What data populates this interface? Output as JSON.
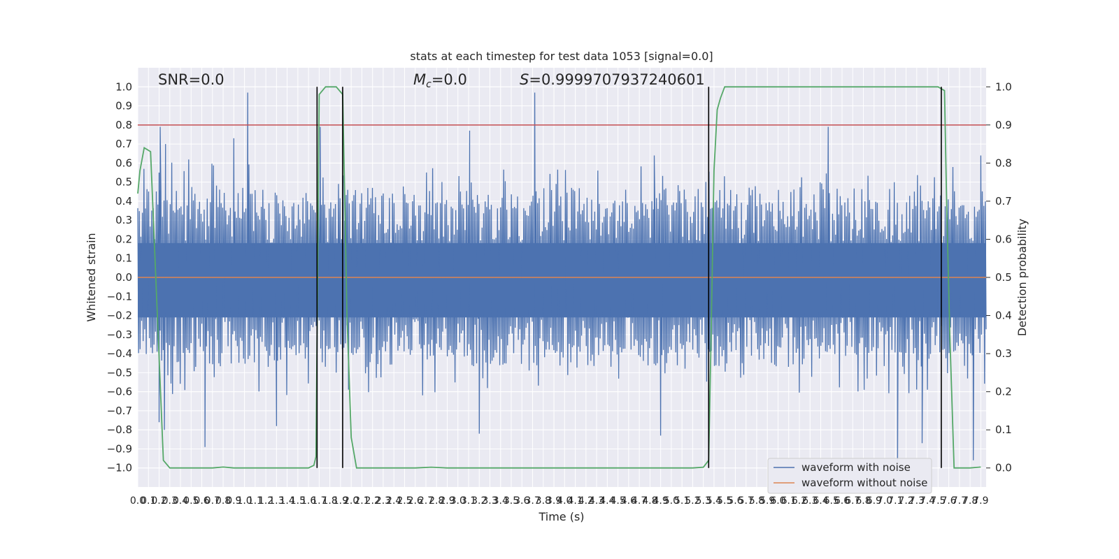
{
  "chart_data": {
    "type": "line",
    "title": "stats at each timestep for test data 1053 [signal=0.0]",
    "xlabel": "Time (s)",
    "ylabel": "Whitened strain",
    "y2label": "Detection probability",
    "xlim": [
      0.0,
      7.95
    ],
    "ylim": [
      -1.1,
      1.1
    ],
    "y2lim": [
      -0.05,
      1.05
    ],
    "yticks": [
      "−1.0",
      "−0.9",
      "−0.8",
      "−0.7",
      "−0.6",
      "−0.5",
      "−0.4",
      "−0.3",
      "−0.2",
      "−0.1",
      "0.0",
      "0.1",
      "0.2",
      "0.3",
      "0.4",
      "0.5",
      "0.6",
      "0.7",
      "0.8",
      "0.9",
      "1.0"
    ],
    "y2ticks": [
      "0.0",
      "0.1",
      "0.2",
      "0.3",
      "0.4",
      "0.5",
      "0.6",
      "0.7",
      "0.8",
      "0.9",
      "1.0"
    ],
    "xticks": [
      "0.0",
      "0.1",
      "0.2",
      "0.3",
      "0.4",
      "0.5",
      "0.6",
      "0.7",
      "0.8",
      "0.9",
      "1.0",
      "1.1",
      "1.2",
      "1.3",
      "1.4",
      "1.5",
      "1.6",
      "1.7",
      "1.8",
      "1.9",
      "2.0",
      "2.1",
      "2.2",
      "2.3",
      "2.4",
      "2.5",
      "2.6",
      "2.7",
      "2.8",
      "2.9",
      "3.0",
      "3.1",
      "3.2",
      "3.3",
      "3.4",
      "3.5",
      "3.6",
      "3.7",
      "3.8",
      "3.9",
      "4.0",
      "4.1",
      "4.2",
      "4.3",
      "4.4",
      "4.5",
      "4.6",
      "4.7",
      "4.8",
      "4.9",
      "5.0",
      "5.1",
      "5.2",
      "5.3",
      "5.4",
      "5.5",
      "5.6",
      "5.7",
      "5.8",
      "5.9",
      "6.0",
      "6.1",
      "6.2",
      "6.3",
      "6.4",
      "6.5",
      "6.6",
      "6.7",
      "6.8",
      "6.9",
      "7.0",
      "7.1",
      "7.2",
      "7.3",
      "7.4",
      "7.5",
      "7.6",
      "7.7",
      "7.8",
      "7.9"
    ],
    "grid": true,
    "legend_position": "bottom-right",
    "annotations": {
      "snr": "SNR=0.0",
      "mc_prefix": "M",
      "mc_sub": "c",
      "mc_suffix": "=0.0",
      "s_prefix": "S",
      "s_suffix": "=0.9999707937240601"
    },
    "threshold": {
      "value": 0.9,
      "axis": "y2",
      "color": "#c44e52"
    },
    "noise_envelope": {
      "name": "waveform with noise",
      "color": "#4c72b0",
      "upper_peaks": [
        {
          "x": 0.21,
          "y": 0.79
        },
        {
          "x": 0.2,
          "y": 0.55
        },
        {
          "x": 0.26,
          "y": 0.7
        },
        {
          "x": 1.03,
          "y": 0.97
        },
        {
          "x": 0.9,
          "y": 0.73
        },
        {
          "x": 1.71,
          "y": 0.79
        },
        {
          "x": 3.11,
          "y": 0.77
        },
        {
          "x": 3.72,
          "y": 0.97
        },
        {
          "x": 6.47,
          "y": 0.79
        },
        {
          "x": 4.84,
          "y": 0.64
        },
        {
          "x": 7.9,
          "y": 0.64
        }
      ],
      "lower_peaks": [
        {
          "x": 0.2,
          "y": -0.76
        },
        {
          "x": 0.25,
          "y": -0.8
        },
        {
          "x": 0.63,
          "y": -0.89
        },
        {
          "x": 1.3,
          "y": -0.78
        },
        {
          "x": 3.2,
          "y": -0.82
        },
        {
          "x": 4.9,
          "y": -0.83
        },
        {
          "x": 7.12,
          "y": -0.97
        },
        {
          "x": 7.35,
          "y": -0.87
        },
        {
          "x": 7.83,
          "y": -0.96
        }
      ]
    },
    "clean_waveform": {
      "name": "waveform without noise",
      "color": "#dd8452",
      "value": 0.0
    },
    "detection_probability": {
      "color": "#55a868",
      "x": [
        0.0,
        0.02,
        0.06,
        0.12,
        0.24,
        0.3,
        0.4,
        0.5,
        0.6,
        0.7,
        0.8,
        0.9,
        1.0,
        1.2,
        1.4,
        1.6,
        1.65,
        1.67,
        1.7,
        1.76,
        1.82,
        1.86,
        1.92,
        1.94,
        1.96,
        2.0,
        2.05,
        2.1,
        2.2,
        2.4,
        2.6,
        2.75,
        2.9,
        3.0,
        3.2,
        3.5,
        4.0,
        4.5,
        5.0,
        5.2,
        5.3,
        5.35,
        5.37,
        5.4,
        5.43,
        5.46,
        5.5,
        5.6,
        6.0,
        6.5,
        7.0,
        7.3,
        7.5,
        7.56,
        7.58,
        7.61,
        7.65,
        7.8,
        7.9
      ],
      "y": [
        0.72,
        0.78,
        0.84,
        0.83,
        0.02,
        0.0,
        0.0,
        0.0,
        0.0,
        0.0,
        0.0025,
        0.0,
        0.0,
        0.0,
        0.0,
        0.0,
        0.007,
        0.03,
        0.98,
        1.0,
        1.0,
        1.0,
        0.98,
        0.7,
        0.4,
        0.08,
        0.0,
        0.0,
        0.0,
        0.0,
        0.0,
        0.002,
        0.0,
        0.0,
        0.0,
        0.0,
        0.0,
        0.0,
        0.0,
        0.0,
        0.002,
        0.02,
        0.3,
        0.78,
        0.94,
        0.97,
        1.0,
        1.0,
        1.0,
        1.0,
        1.0,
        1.0,
        1.0,
        0.99,
        0.7,
        0.35,
        0.0,
        0.0,
        0.0025
      ]
    },
    "vertical_markers": [
      1.68,
      1.92,
      5.35,
      7.53
    ],
    "legend": [
      "waveform with noise",
      "waveform without noise"
    ]
  }
}
